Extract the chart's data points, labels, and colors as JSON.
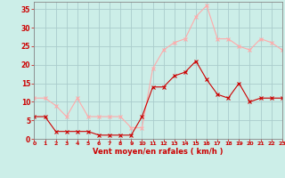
{
  "x": [
    0,
    1,
    2,
    3,
    4,
    5,
    6,
    7,
    8,
    9,
    10,
    11,
    12,
    13,
    14,
    15,
    16,
    17,
    18,
    19,
    20,
    21,
    22,
    23
  ],
  "vent_moyen": [
    6,
    6,
    2,
    2,
    2,
    2,
    1,
    1,
    1,
    1,
    6,
    14,
    14,
    17,
    18,
    21,
    16,
    12,
    11,
    15,
    10,
    11,
    11,
    11
  ],
  "vent_rafales": [
    11,
    11,
    9,
    6,
    11,
    6,
    6,
    6,
    6,
    3,
    3,
    19,
    24,
    26,
    27,
    33,
    36,
    27,
    27,
    25,
    24,
    27,
    26,
    24
  ],
  "xlabel": "Vent moyen/en rafales ( km/h )",
  "ylim": [
    0,
    37
  ],
  "xlim": [
    0,
    23
  ],
  "yticks": [
    0,
    5,
    10,
    15,
    20,
    25,
    30,
    35
  ],
  "xticks": [
    0,
    1,
    2,
    3,
    4,
    5,
    6,
    7,
    8,
    9,
    10,
    11,
    12,
    13,
    14,
    15,
    16,
    17,
    18,
    19,
    20,
    21,
    22,
    23
  ],
  "color_moyen": "#cc0000",
  "color_rafales": "#ffaaaa",
  "bg_color": "#cceee8",
  "grid_color": "#aacccc",
  "tick_color": "#cc0000",
  "label_color": "#cc0000",
  "spine_color": "#888888"
}
